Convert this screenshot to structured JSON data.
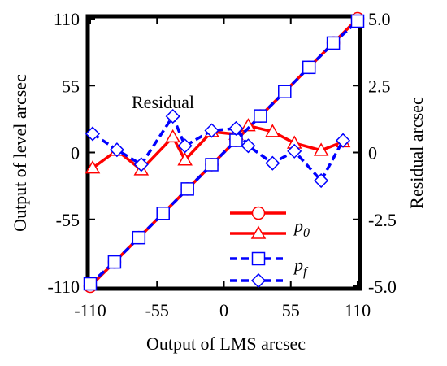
{
  "chart_data": {
    "type": "line",
    "xlabel": "Output of LMS   arcsec",
    "ylabel": "Output of level    arcsec",
    "y2label": "Residual    arcsec",
    "annotation": "Residual",
    "xlim": [
      -110,
      110
    ],
    "ylim": [
      -110,
      110
    ],
    "y2lim": [
      -5.0,
      5.0
    ],
    "x_ticks": [
      "-110",
      "-55",
      "0",
      "55",
      "110"
    ],
    "y_ticks": [
      "-110",
      "-55",
      "0",
      "55",
      "110"
    ],
    "y2_ticks": [
      "-5.0",
      "-2.5",
      "0",
      "2.5",
      "5.0"
    ],
    "x": [
      -110,
      -90,
      -70,
      -50,
      -30,
      -10,
      10,
      30,
      50,
      70,
      90,
      110
    ],
    "series": [
      {
        "name": "p0",
        "axis": "left",
        "color": "#ff0000",
        "marker": "circle",
        "values": [
          -110,
          -90,
          -70,
          -50,
          -30,
          -10,
          10,
          30,
          50,
          70,
          90,
          110
        ]
      },
      {
        "name": "p0",
        "axis": "right",
        "color": "#ff0000",
        "marker": "triangle",
        "x": [
          -108,
          -88,
          -68,
          -42,
          -32,
          -10,
          10,
          20,
          40,
          58,
          80,
          98
        ],
        "values": [
          -0.58,
          0.08,
          -0.65,
          0.58,
          -0.28,
          0.78,
          0.68,
          1.0,
          0.78,
          0.35,
          0.08,
          0.4
        ]
      },
      {
        "name": "pf",
        "axis": "left",
        "color": "#0000ff",
        "marker": "square",
        "values": [
          -108,
          -90,
          -70,
          -50,
          -30,
          -10,
          10,
          30,
          50,
          70,
          90,
          108
        ]
      },
      {
        "name": "pf",
        "axis": "right",
        "color": "#0000ff",
        "marker": "diamond",
        "x": [
          -108,
          -88,
          -68,
          -42,
          -32,
          -10,
          10,
          20,
          40,
          58,
          80,
          98
        ],
        "values": [
          0.7,
          0.1,
          -0.45,
          1.35,
          0.25,
          0.82,
          0.9,
          0.25,
          -0.4,
          0.05,
          -1.05,
          0.45
        ]
      }
    ],
    "legend": {
      "placement": "bottom-right",
      "labels": [
        {
          "base": "p",
          "sub": "0"
        },
        {
          "base": "p",
          "sub": "f"
        }
      ]
    },
    "grid": false
  }
}
